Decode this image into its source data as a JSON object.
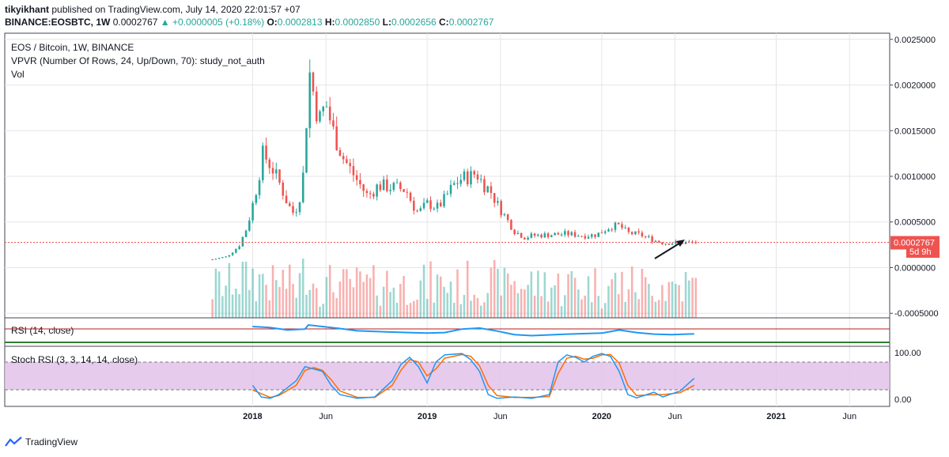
{
  "header": {
    "author": "tikyikhant",
    "published": "published on TradingView.com, July 14, 2020 22:01:57 +07",
    "symbol": "BINANCE:EOSBTC, 1W",
    "price": "0.0002767",
    "change": "+0.0000005 (+0.18%)",
    "o_label": "O:",
    "o_value": "0.0002813",
    "h_label": "H:",
    "h_value": "0.0002850",
    "l_label": "L:",
    "l_value": "0.0002656",
    "c_label": "C:",
    "c_value": "0.0002767"
  },
  "legend": {
    "title": "EOS / Bitcoin, 1W, BINANCE",
    "vpvr": "VPVR (Number Of Rows, 24, Up/Down, 70): study_not_auth",
    "vol": "Vol",
    "rsi": "RSI (14, close)",
    "stoch": "Stoch RSI (3, 3, 14, 14, close)"
  },
  "price_badge": {
    "value": "0.0002767",
    "countdown": "5d 9h"
  },
  "footer": {
    "brand": "TradingView"
  },
  "colors": {
    "up": "#26a69a",
    "down": "#ef5350",
    "rsi": "#2196f3",
    "stoch_k": "#2196f3",
    "stoch_d": "#ff6d00",
    "stoch_band": "#e1bee7"
  },
  "chart_data": [
    {
      "type": "candlestick",
      "title": "EOS / Bitcoin, 1W, BINANCE",
      "y_ticks": [
        {
          "v": 0.0025,
          "label": "0.0025000"
        },
        {
          "v": 0.002,
          "label": "0.0020000"
        },
        {
          "v": 0.0015,
          "label": "0.0015000"
        },
        {
          "v": 0.001,
          "label": "0.0010000"
        },
        {
          "v": 0.0005,
          "label": "0.0005000"
        },
        {
          "v": 0,
          "label": "0.0000000"
        },
        {
          "v": -0.0005,
          "label": "-0.0005000"
        }
      ],
      "ylim": [
        -0.00055,
        0.00255
      ],
      "x_ticks": [
        {
          "t": 2018.0,
          "label": "2018",
          "bold": true
        },
        {
          "t": 2018.42,
          "label": "Jun",
          "bold": false
        },
        {
          "t": 2019.0,
          "label": "2019",
          "bold": true
        },
        {
          "t": 2019.42,
          "label": "Jun",
          "bold": false
        },
        {
          "t": 2020.0,
          "label": "2020",
          "bold": true
        },
        {
          "t": 2020.42,
          "label": "Jun",
          "bold": false
        },
        {
          "t": 2021.0,
          "label": "2021",
          "bold": true
        },
        {
          "t": 2021.42,
          "label": "Jun",
          "bold": false
        }
      ],
      "xlim": [
        2016.58,
        2021.65
      ],
      "anchors": [
        {
          "t": 2017.77,
          "v": 9e-05
        },
        {
          "t": 2017.85,
          "v": 0.00012
        },
        {
          "t": 2017.92,
          "v": 0.00023
        },
        {
          "t": 2017.97,
          "v": 0.00045
        },
        {
          "t": 2018.02,
          "v": 0.00085
        },
        {
          "t": 2018.06,
          "v": 0.00125
        },
        {
          "t": 2018.11,
          "v": 0.0011
        },
        {
          "t": 2018.16,
          "v": 0.0009
        },
        {
          "t": 2018.2,
          "v": 0.0007
        },
        {
          "t": 2018.24,
          "v": 0.00058
        },
        {
          "t": 2018.28,
          "v": 0.00085
        },
        {
          "t": 2018.3,
          "v": 0.0012
        },
        {
          "t": 2018.32,
          "v": 0.0022
        },
        {
          "t": 2018.35,
          "v": 0.0019
        },
        {
          "t": 2018.38,
          "v": 0.0016
        },
        {
          "t": 2018.42,
          "v": 0.0018
        },
        {
          "t": 2018.46,
          "v": 0.0015
        },
        {
          "t": 2018.52,
          "v": 0.0012
        },
        {
          "t": 2018.6,
          "v": 0.00095
        },
        {
          "t": 2018.66,
          "v": 0.00078
        },
        {
          "t": 2018.72,
          "v": 0.0009
        },
        {
          "t": 2018.8,
          "v": 0.00088
        },
        {
          "t": 2018.88,
          "v": 0.00085
        },
        {
          "t": 2018.92,
          "v": 0.00068
        },
        {
          "t": 2018.95,
          "v": 0.0006
        },
        {
          "t": 2019.0,
          "v": 0.0007
        },
        {
          "t": 2019.06,
          "v": 0.00066
        },
        {
          "t": 2019.1,
          "v": 0.00075
        },
        {
          "t": 2019.15,
          "v": 0.0009
        },
        {
          "t": 2019.2,
          "v": 0.00098
        },
        {
          "t": 2019.25,
          "v": 0.001
        },
        {
          "t": 2019.28,
          "v": 0.00104
        },
        {
          "t": 2019.32,
          "v": 0.00092
        },
        {
          "t": 2019.36,
          "v": 0.00085
        },
        {
          "t": 2019.4,
          "v": 0.0007
        },
        {
          "t": 2019.45,
          "v": 0.00055
        },
        {
          "t": 2019.5,
          "v": 0.0004
        },
        {
          "t": 2019.56,
          "v": 0.00033
        },
        {
          "t": 2019.6,
          "v": 0.00035
        },
        {
          "t": 2019.7,
          "v": 0.00036
        },
        {
          "t": 2019.8,
          "v": 0.00037
        },
        {
          "t": 2019.9,
          "v": 0.00035
        },
        {
          "t": 2019.97,
          "v": 0.00036
        },
        {
          "t": 2020.05,
          "v": 0.00045
        },
        {
          "t": 2020.1,
          "v": 0.00046
        },
        {
          "t": 2020.15,
          "v": 0.00038
        },
        {
          "t": 2020.22,
          "v": 0.00036
        },
        {
          "t": 2020.3,
          "v": 0.0003
        },
        {
          "t": 2020.35,
          "v": 0.00027
        },
        {
          "t": 2020.45,
          "v": 0.00027
        },
        {
          "t": 2020.53,
          "v": 0.0002767
        }
      ],
      "last_price": 0.0002767
    },
    {
      "type": "bar",
      "title": "Vol",
      "note": "volume histogram overlaid at the bottom of the price pane, no axis"
    },
    {
      "type": "line",
      "title": "RSI (14, close)",
      "levels": [
        70,
        30
      ],
      "series": [
        {
          "name": "RSI",
          "points": [
            [
              2018.0,
              72
            ],
            [
              2018.1,
              68
            ],
            [
              2018.2,
              58
            ],
            [
              2018.3,
              62
            ],
            [
              2018.32,
              78
            ],
            [
              2018.4,
              72
            ],
            [
              2018.5,
              64
            ],
            [
              2018.6,
              55
            ],
            [
              2018.8,
              50
            ],
            [
              2019.0,
              46
            ],
            [
              2019.1,
              48
            ],
            [
              2019.2,
              62
            ],
            [
              2019.3,
              66
            ],
            [
              2019.4,
              54
            ],
            [
              2019.5,
              40
            ],
            [
              2019.6,
              36
            ],
            [
              2019.8,
              42
            ],
            [
              2020.0,
              46
            ],
            [
              2020.1,
              58
            ],
            [
              2020.2,
              48
            ],
            [
              2020.3,
              42
            ],
            [
              2020.4,
              40
            ],
            [
              2020.53,
              43
            ]
          ]
        }
      ]
    },
    {
      "type": "line",
      "title": "Stoch RSI (3, 3, 14, 14, close)",
      "y_ticks": [
        {
          "v": 100,
          "label": "100.00"
        },
        {
          "v": 0,
          "label": "0.00"
        }
      ],
      "levels": [
        80,
        20
      ],
      "series": [
        {
          "name": "K",
          "points": [
            [
              2018.0,
              30
            ],
            [
              2018.05,
              5
            ],
            [
              2018.1,
              2
            ],
            [
              2018.15,
              10
            ],
            [
              2018.25,
              40
            ],
            [
              2018.3,
              70
            ],
            [
              2018.35,
              65
            ],
            [
              2018.4,
              60
            ],
            [
              2018.45,
              30
            ],
            [
              2018.5,
              10
            ],
            [
              2018.6,
              2
            ],
            [
              2018.7,
              5
            ],
            [
              2018.8,
              40
            ],
            [
              2018.85,
              75
            ],
            [
              2018.9,
              90
            ],
            [
              2018.95,
              70
            ],
            [
              2019.0,
              35
            ],
            [
              2019.05,
              80
            ],
            [
              2019.1,
              95
            ],
            [
              2019.2,
              98
            ],
            [
              2019.25,
              85
            ],
            [
              2019.3,
              60
            ],
            [
              2019.35,
              10
            ],
            [
              2019.4,
              2
            ],
            [
              2019.5,
              5
            ],
            [
              2019.6,
              2
            ],
            [
              2019.7,
              10
            ],
            [
              2019.75,
              80
            ],
            [
              2019.8,
              95
            ],
            [
              2019.85,
              90
            ],
            [
              2019.9,
              80
            ],
            [
              2019.95,
              92
            ],
            [
              2020.0,
              98
            ],
            [
              2020.05,
              92
            ],
            [
              2020.1,
              60
            ],
            [
              2020.15,
              10
            ],
            [
              2020.2,
              3
            ],
            [
              2020.3,
              15
            ],
            [
              2020.35,
              5
            ],
            [
              2020.45,
              18
            ],
            [
              2020.53,
              45
            ]
          ]
        },
        {
          "name": "D",
          "points": [
            [
              2018.0,
              20
            ],
            [
              2018.05,
              12
            ],
            [
              2018.1,
              4
            ],
            [
              2018.15,
              8
            ],
            [
              2018.25,
              30
            ],
            [
              2018.3,
              62
            ],
            [
              2018.35,
              68
            ],
            [
              2018.4,
              62
            ],
            [
              2018.45,
              42
            ],
            [
              2018.5,
              18
            ],
            [
              2018.6,
              4
            ],
            [
              2018.7,
              4
            ],
            [
              2018.8,
              30
            ],
            [
              2018.85,
              62
            ],
            [
              2018.9,
              85
            ],
            [
              2018.95,
              80
            ],
            [
              2019.0,
              50
            ],
            [
              2019.05,
              65
            ],
            [
              2019.1,
              88
            ],
            [
              2019.2,
              96
            ],
            [
              2019.25,
              92
            ],
            [
              2019.3,
              72
            ],
            [
              2019.35,
              30
            ],
            [
              2019.4,
              8
            ],
            [
              2019.5,
              4
            ],
            [
              2019.6,
              4
            ],
            [
              2019.7,
              6
            ],
            [
              2019.75,
              55
            ],
            [
              2019.8,
              88
            ],
            [
              2019.85,
              92
            ],
            [
              2019.9,
              86
            ],
            [
              2019.95,
              88
            ],
            [
              2020.0,
              95
            ],
            [
              2020.05,
              96
            ],
            [
              2020.1,
              78
            ],
            [
              2020.15,
              30
            ],
            [
              2020.2,
              8
            ],
            [
              2020.3,
              10
            ],
            [
              2020.35,
              10
            ],
            [
              2020.45,
              14
            ],
            [
              2020.53,
              30
            ]
          ]
        }
      ]
    }
  ]
}
